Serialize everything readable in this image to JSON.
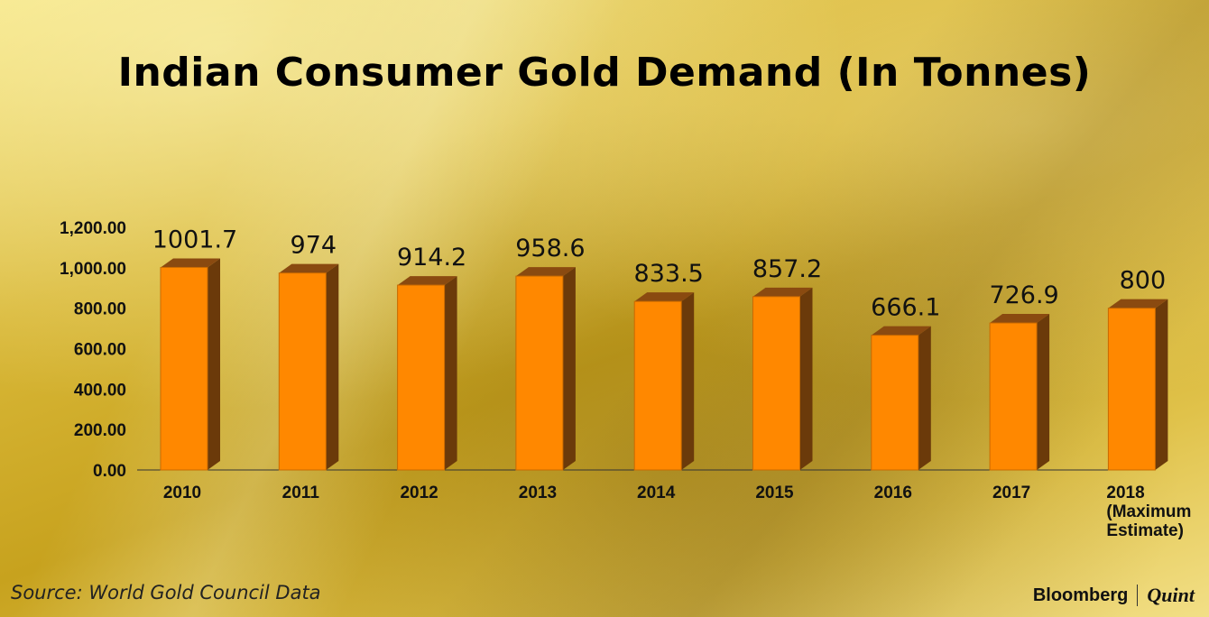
{
  "title": "Indian Consumer Gold Demand (In Tonnes)",
  "source": "Source: World Gold Council Data",
  "brand": {
    "name": "Bloomberg",
    "partner": "Quint"
  },
  "colors": {
    "bar_front": "#ff8800",
    "bar_side": "#6b3a0a",
    "bar_top": "#8a4a10"
  },
  "chart_data": {
    "type": "bar",
    "title": "Indian Consumer Gold Demand (In Tonnes)",
    "categories": [
      "2010",
      "2011",
      "2012",
      "2013",
      "2014",
      "2015",
      "2016",
      "2017",
      "2018 (Maximum Estimate)"
    ],
    "category_lines": [
      [
        "2010"
      ],
      [
        "2011"
      ],
      [
        "2012"
      ],
      [
        "2013"
      ],
      [
        "2014"
      ],
      [
        "2015"
      ],
      [
        "2016"
      ],
      [
        "2017"
      ],
      [
        "2018",
        "(Maximum",
        "Estimate)"
      ]
    ],
    "values": [
      1001.7,
      974,
      914.2,
      958.6,
      833.5,
      857.2,
      666.1,
      726.9,
      800
    ],
    "value_labels": [
      "1001.7",
      "974",
      "914.2",
      "958.6",
      "833.5",
      "857.2",
      "666.1",
      "726.9",
      "800"
    ],
    "yticks": [
      "0.00",
      "200.00",
      "400.00",
      "600.00",
      "800.00",
      "1,000.00",
      "1,200.00"
    ],
    "ylim": [
      0,
      1200
    ],
    "grid": false,
    "legend": "none",
    "style": "3d-bar"
  }
}
